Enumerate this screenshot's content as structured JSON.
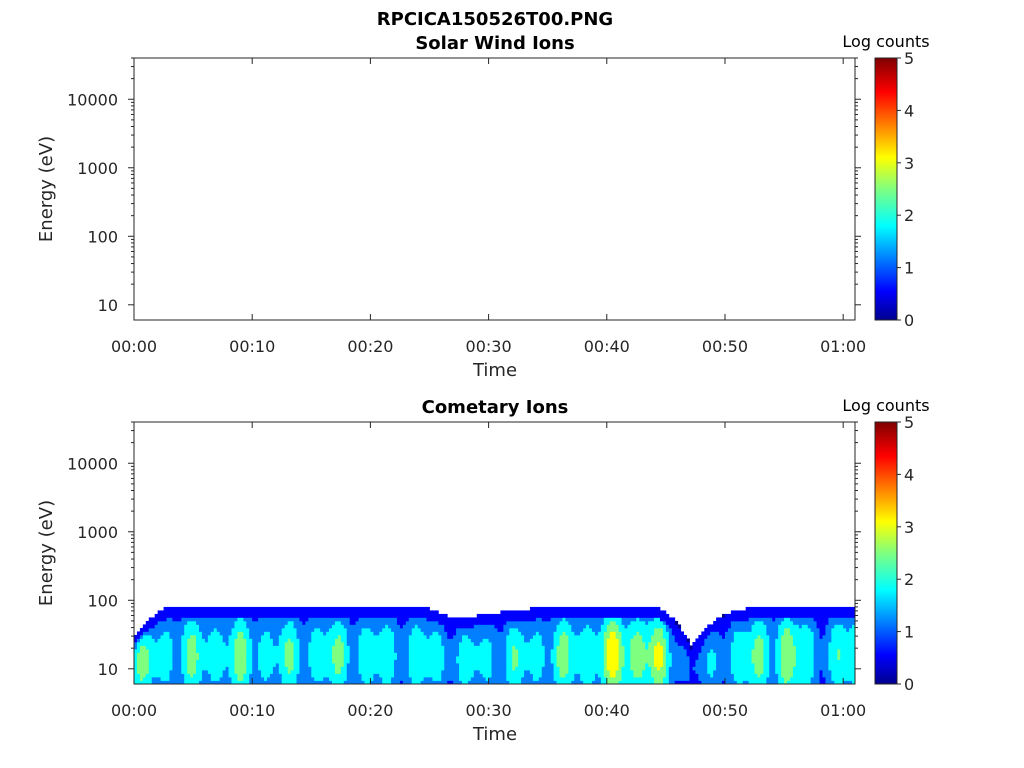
{
  "figure": {
    "title": "RPCICA150526T00.PNG"
  },
  "colormap": [
    "#00008f",
    "#0000ff",
    "#007fff",
    "#00ffff",
    "#7fff7f",
    "#ffff00",
    "#ff7f00",
    "#ff0000",
    "#7f0000"
  ],
  "chart_data": [
    {
      "type": "heatmap",
      "title": "Solar Wind Ions",
      "xlabel": "Time",
      "ylabel": "Energy (eV)",
      "x_ticks": [
        "00:00",
        "00:10",
        "00:20",
        "00:30",
        "00:40",
        "00:50",
        "01:00"
      ],
      "y_ticks": [
        "10",
        "100",
        "1000",
        "10000"
      ],
      "y_scale": "log",
      "ylim": [
        6,
        40000
      ],
      "xlim_minutes": [
        0,
        61
      ],
      "colorbar": {
        "label": "Log counts",
        "ticks": [
          "0",
          "1",
          "2",
          "3",
          "4",
          "5"
        ],
        "range": [
          0,
          5
        ]
      },
      "data": []
    },
    {
      "type": "heatmap",
      "title": "Cometary Ions",
      "xlabel": "Time",
      "ylabel": "Energy (eV)",
      "x_ticks": [
        "00:00",
        "00:10",
        "00:20",
        "00:30",
        "00:40",
        "00:50",
        "01:00"
      ],
      "y_ticks": [
        "10",
        "100",
        "1000",
        "10000"
      ],
      "y_scale": "log",
      "ylim": [
        6,
        40000
      ],
      "xlim_minutes": [
        0,
        61
      ],
      "colorbar": {
        "label": "Log counts",
        "ticks": [
          "0",
          "1",
          "2",
          "3",
          "4",
          "5"
        ],
        "range": [
          0,
          5
        ]
      },
      "energy_range_ev": [
        6,
        80
      ],
      "data": [
        {
          "t_min": 0,
          "top_ev": 30,
          "peak_log_counts": 2.7
        },
        {
          "t_min": 3,
          "top_ev": 80,
          "peak_log_counts": 2.5
        },
        {
          "t_min": 6,
          "top_ev": 80,
          "peak_log_counts": 2.6
        },
        {
          "t_min": 9,
          "top_ev": 80,
          "peak_log_counts": 2.7
        },
        {
          "t_min": 12,
          "top_ev": 80,
          "peak_log_counts": 2.4
        },
        {
          "t_min": 15,
          "top_ev": 80,
          "peak_log_counts": 2.5
        },
        {
          "t_min": 18,
          "top_ev": 80,
          "peak_log_counts": 2.6
        },
        {
          "t_min": 21,
          "top_ev": 80,
          "peak_log_counts": 2.3
        },
        {
          "t_min": 24,
          "top_ev": 80,
          "peak_log_counts": 2.4
        },
        {
          "t_min": 27,
          "top_ev": 50,
          "peak_log_counts": 2.2
        },
        {
          "t_min": 30,
          "top_ev": 60,
          "peak_log_counts": 2.3
        },
        {
          "t_min": 33,
          "top_ev": 70,
          "peak_log_counts": 2.4
        },
        {
          "t_min": 36,
          "top_ev": 80,
          "peak_log_counts": 2.6
        },
        {
          "t_min": 39,
          "top_ev": 80,
          "peak_log_counts": 2.9
        },
        {
          "t_min": 41,
          "top_ev": 80,
          "peak_log_counts": 3.6
        },
        {
          "t_min": 44,
          "top_ev": 80,
          "peak_log_counts": 3.3
        },
        {
          "t_min": 47,
          "top_ev": 20,
          "peak_log_counts": 1.2
        },
        {
          "t_min": 50,
          "top_ev": 60,
          "peak_log_counts": 2.3
        },
        {
          "t_min": 53,
          "top_ev": 80,
          "peak_log_counts": 2.8
        },
        {
          "t_min": 55,
          "top_ev": 80,
          "peak_log_counts": 3.2
        },
        {
          "t_min": 58,
          "top_ev": 80,
          "peak_log_counts": 2.0
        },
        {
          "t_min": 61,
          "top_ev": 80,
          "peak_log_counts": 2.8
        }
      ]
    }
  ]
}
